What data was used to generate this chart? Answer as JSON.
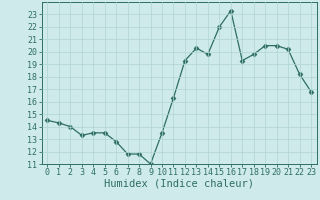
{
  "xlabel": "Humidex (Indice chaleur)",
  "x_values": [
    0,
    1,
    2,
    3,
    4,
    5,
    6,
    7,
    8,
    9,
    10,
    11,
    12,
    13,
    14,
    15,
    16,
    17,
    18,
    19,
    20,
    21,
    22,
    23
  ],
  "y_values": [
    14.5,
    14.3,
    14.0,
    13.3,
    13.5,
    13.5,
    12.8,
    11.8,
    11.8,
    11.0,
    13.5,
    16.3,
    19.3,
    20.3,
    19.8,
    22.0,
    23.3,
    19.3,
    19.8,
    20.5,
    20.5,
    20.2,
    18.2,
    16.8
  ],
  "line_color": "#2e6e65",
  "marker": "D",
  "marker_size": 2.5,
  "bg_color": "#ceeaea",
  "grid_color": "#b0d4d4",
  "ylim": [
    11,
    24
  ],
  "xlim": [
    -0.5,
    23.5
  ],
  "yticks": [
    11,
    12,
    13,
    14,
    15,
    16,
    17,
    18,
    19,
    20,
    21,
    22,
    23
  ],
  "xticks": [
    0,
    1,
    2,
    3,
    4,
    5,
    6,
    7,
    8,
    9,
    10,
    11,
    12,
    13,
    14,
    15,
    16,
    17,
    18,
    19,
    20,
    21,
    22,
    23
  ],
  "tick_fontsize": 6,
  "xlabel_fontsize": 7.5
}
